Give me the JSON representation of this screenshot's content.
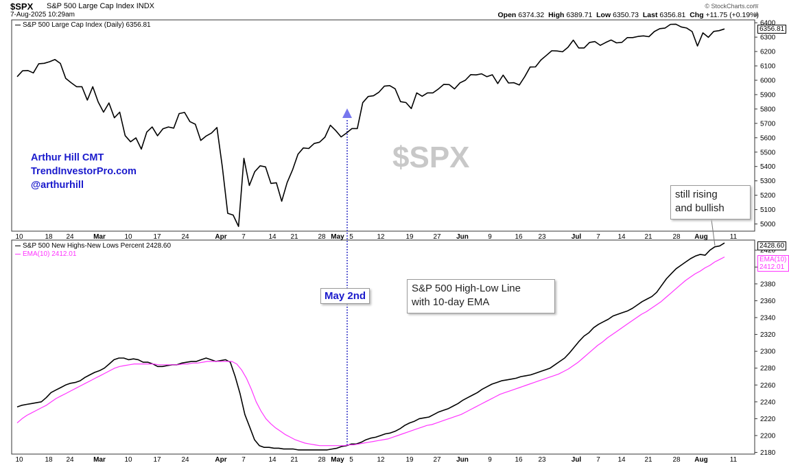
{
  "header": {
    "ticker": "$SPX",
    "name": "S&P 500 Large Cap Index",
    "exchange": "INDX",
    "date": "7-Aug-2025 10:29am",
    "source": "© StockCharts.com",
    "open_label": "Open",
    "open": "6374.32",
    "high_label": "High",
    "high": "6389.71",
    "low_label": "Low",
    "low": "6350.73",
    "last_label": "Last",
    "last": "6356.81",
    "chg_label": "Chg",
    "chg": "+11.75 (+0.19%)"
  },
  "colors": {
    "price_line": "#000000",
    "ema_line": "#ff33ff",
    "marker": "#7777ee",
    "vline": "#3a3ac8",
    "credit": "#1a1acc",
    "watermark": "#c8c8c8"
  },
  "credits": [
    "Arthur Hill CMT",
    "TrendInvestorPro.com",
    "@arthurhill"
  ],
  "watermark": "$SPX",
  "annotations": {
    "rising": [
      "still rising",
      "and bullish"
    ],
    "hl_title": [
      "S&P 500 High-Low Line",
      "with 10-day EMA"
    ],
    "may_marker": "May 2nd"
  },
  "chart_data": [
    {
      "type": "line",
      "title": "S&P 500 Large Cap Index (Daily) 6356.81",
      "y_ticks": [
        5000,
        5100,
        5200,
        5300,
        5400,
        5500,
        5600,
        5700,
        5800,
        5900,
        6000,
        6100,
        6200,
        6300,
        6400
      ],
      "ylim": [
        4950,
        6420
      ],
      "last_value_label": "6356.81",
      "x_ticks": [
        "10",
        "18",
        "24",
        "Mar",
        "10",
        "17",
        "24",
        "Apr",
        "7",
        "14",
        "21",
        "28",
        "May",
        "5",
        "12",
        "19",
        "27",
        "Jun",
        "9",
        "16",
        "23",
        "Jul",
        "7",
        "14",
        "21",
        "28",
        "Aug",
        "11"
      ],
      "series": [
        {
          "name": "S&P 500 Large Cap Index (Daily)",
          "values": [
            6025,
            6066,
            6068,
            6051,
            6115,
            6118,
            6129,
            6144,
            6117,
            6013,
            5983,
            5955,
            5955,
            5862,
            5955,
            5849,
            5778,
            5842,
            5739,
            5778,
            5615,
            5572,
            5599,
            5521,
            5639,
            5675,
            5614,
            5662,
            5675,
            5667,
            5768,
            5776,
            5712,
            5694,
            5581,
            5612,
            5633,
            5671,
            5396,
            5074,
            5062,
            4983,
            5457,
            5268,
            5364,
            5405,
            5397,
            5282,
            5287,
            5158,
            5288,
            5376,
            5485,
            5529,
            5525,
            5560,
            5569,
            5604,
            5687,
            5650,
            5606,
            5633,
            5664,
            5664,
            5844,
            5887,
            5892,
            5917,
            5959,
            5963,
            5941,
            5851,
            5845,
            5803,
            5912,
            5889,
            5912,
            5912,
            5939,
            5971,
            5970,
            5940,
            5982,
            6000,
            6039,
            6037,
            6045,
            6025,
            6038,
            5977,
            6036,
            5981,
            5983,
            5967,
            6025,
            6092,
            6093,
            6141,
            6173,
            6205,
            6204,
            6198,
            6229,
            6279,
            6225,
            6225,
            6263,
            6269,
            6243,
            6263,
            6280,
            6260,
            6264,
            6297,
            6297,
            6305,
            6309,
            6303,
            6339,
            6359,
            6363,
            6389,
            6390,
            6371,
            6363,
            6339,
            6238,
            6330,
            6299,
            6340,
            6345,
            6357
          ]
        }
      ]
    },
    {
      "type": "line",
      "title": "S&P 500 New Highs-New Lows Percent 2428.60",
      "y_ticks": [
        2180,
        2200,
        2220,
        2240,
        2260,
        2280,
        2300,
        2320,
        2340,
        2360,
        2380,
        2400,
        2420
      ],
      "ylim": [
        2178,
        2432
      ],
      "last_value_label": "2428.60",
      "x_ticks": [
        "10",
        "18",
        "24",
        "Mar",
        "10",
        "17",
        "24",
        "Apr",
        "7",
        "14",
        "21",
        "28",
        "May",
        "5",
        "12",
        "19",
        "27",
        "Jun",
        "9",
        "16",
        "23",
        "Jul",
        "7",
        "14",
        "21",
        "28",
        "Aug",
        "11"
      ],
      "series": [
        {
          "name": "S&P 500 New Highs-New Lows Percent",
          "values": [
            2234,
            2236,
            2237,
            2238,
            2239,
            2240,
            2245,
            2251,
            2254,
            2257,
            2260,
            2262,
            2263,
            2265,
            2269,
            2272,
            2275,
            2277,
            2280,
            2285,
            2290,
            2292,
            2292,
            2290,
            2291,
            2290,
            2287,
            2287,
            2285,
            2282,
            2282,
            2283,
            2284,
            2284,
            2286,
            2287,
            2288,
            2288,
            2290,
            2292,
            2290,
            2288,
            2289,
            2290,
            2287,
            2270,
            2250,
            2225,
            2210,
            2195,
            2188,
            2186,
            2186,
            2185,
            2185,
            2184,
            2184,
            2184,
            2183,
            2183,
            2183,
            2183,
            2183,
            2183,
            2183,
            2184,
            2185,
            2187,
            2188,
            2190,
            2190,
            2192,
            2195,
            2197,
            2198,
            2200,
            2202,
            2203,
            2205,
            2208,
            2212,
            2215,
            2217,
            2220,
            2221,
            2222,
            2225,
            2228,
            2230,
            2232,
            2235,
            2238,
            2242,
            2245,
            2248,
            2251,
            2255,
            2258,
            2261,
            2263,
            2265,
            2266,
            2267,
            2268,
            2270,
            2271,
            2272,
            2274,
            2276,
            2278,
            2280,
            2284,
            2288,
            2292,
            2298,
            2305,
            2312,
            2318,
            2322,
            2328,
            2332,
            2335,
            2338,
            2342,
            2344,
            2346,
            2348,
            2351,
            2355,
            2359,
            2362,
            2365,
            2370,
            2378,
            2386,
            2392,
            2398,
            2402,
            2406,
            2410,
            2413,
            2415,
            2414,
            2420,
            2424,
            2425,
            2428.6
          ]
        },
        {
          "name": "EMA(10) 2412.01",
          "values": [
            2215,
            2220,
            2224,
            2227,
            2230,
            2233,
            2236,
            2240,
            2244,
            2247,
            2250,
            2253,
            2256,
            2259,
            2262,
            2265,
            2268,
            2271,
            2274,
            2277,
            2280,
            2282,
            2283,
            2284,
            2285,
            2285,
            2285,
            2285,
            2285,
            2284,
            2284,
            2284,
            2284,
            2284,
            2285,
            2285,
            2286,
            2286,
            2287,
            2288,
            2288,
            2288,
            2288,
            2288,
            2288,
            2285,
            2278,
            2268,
            2255,
            2240,
            2229,
            2220,
            2214,
            2209,
            2205,
            2201,
            2198,
            2195,
            2193,
            2191,
            2190,
            2189,
            2188,
            2188,
            2188,
            2188,
            2188,
            2188,
            2189,
            2189,
            2190,
            2191,
            2192,
            2193,
            2194,
            2195,
            2196,
            2198,
            2200,
            2202,
            2204,
            2206,
            2208,
            2210,
            2212,
            2213,
            2215,
            2217,
            2219,
            2221,
            2223,
            2225,
            2228,
            2231,
            2234,
            2237,
            2240,
            2243,
            2246,
            2249,
            2251,
            2253,
            2255,
            2257,
            2259,
            2261,
            2263,
            2265,
            2267,
            2269,
            2271,
            2273,
            2276,
            2279,
            2283,
            2287,
            2292,
            2297,
            2302,
            2307,
            2311,
            2316,
            2320,
            2324,
            2328,
            2332,
            2336,
            2340,
            2344,
            2347,
            2351,
            2355,
            2359,
            2364,
            2369,
            2374,
            2379,
            2384,
            2388,
            2392,
            2395,
            2399,
            2402,
            2406,
            2409,
            2412.01
          ]
        }
      ]
    }
  ]
}
